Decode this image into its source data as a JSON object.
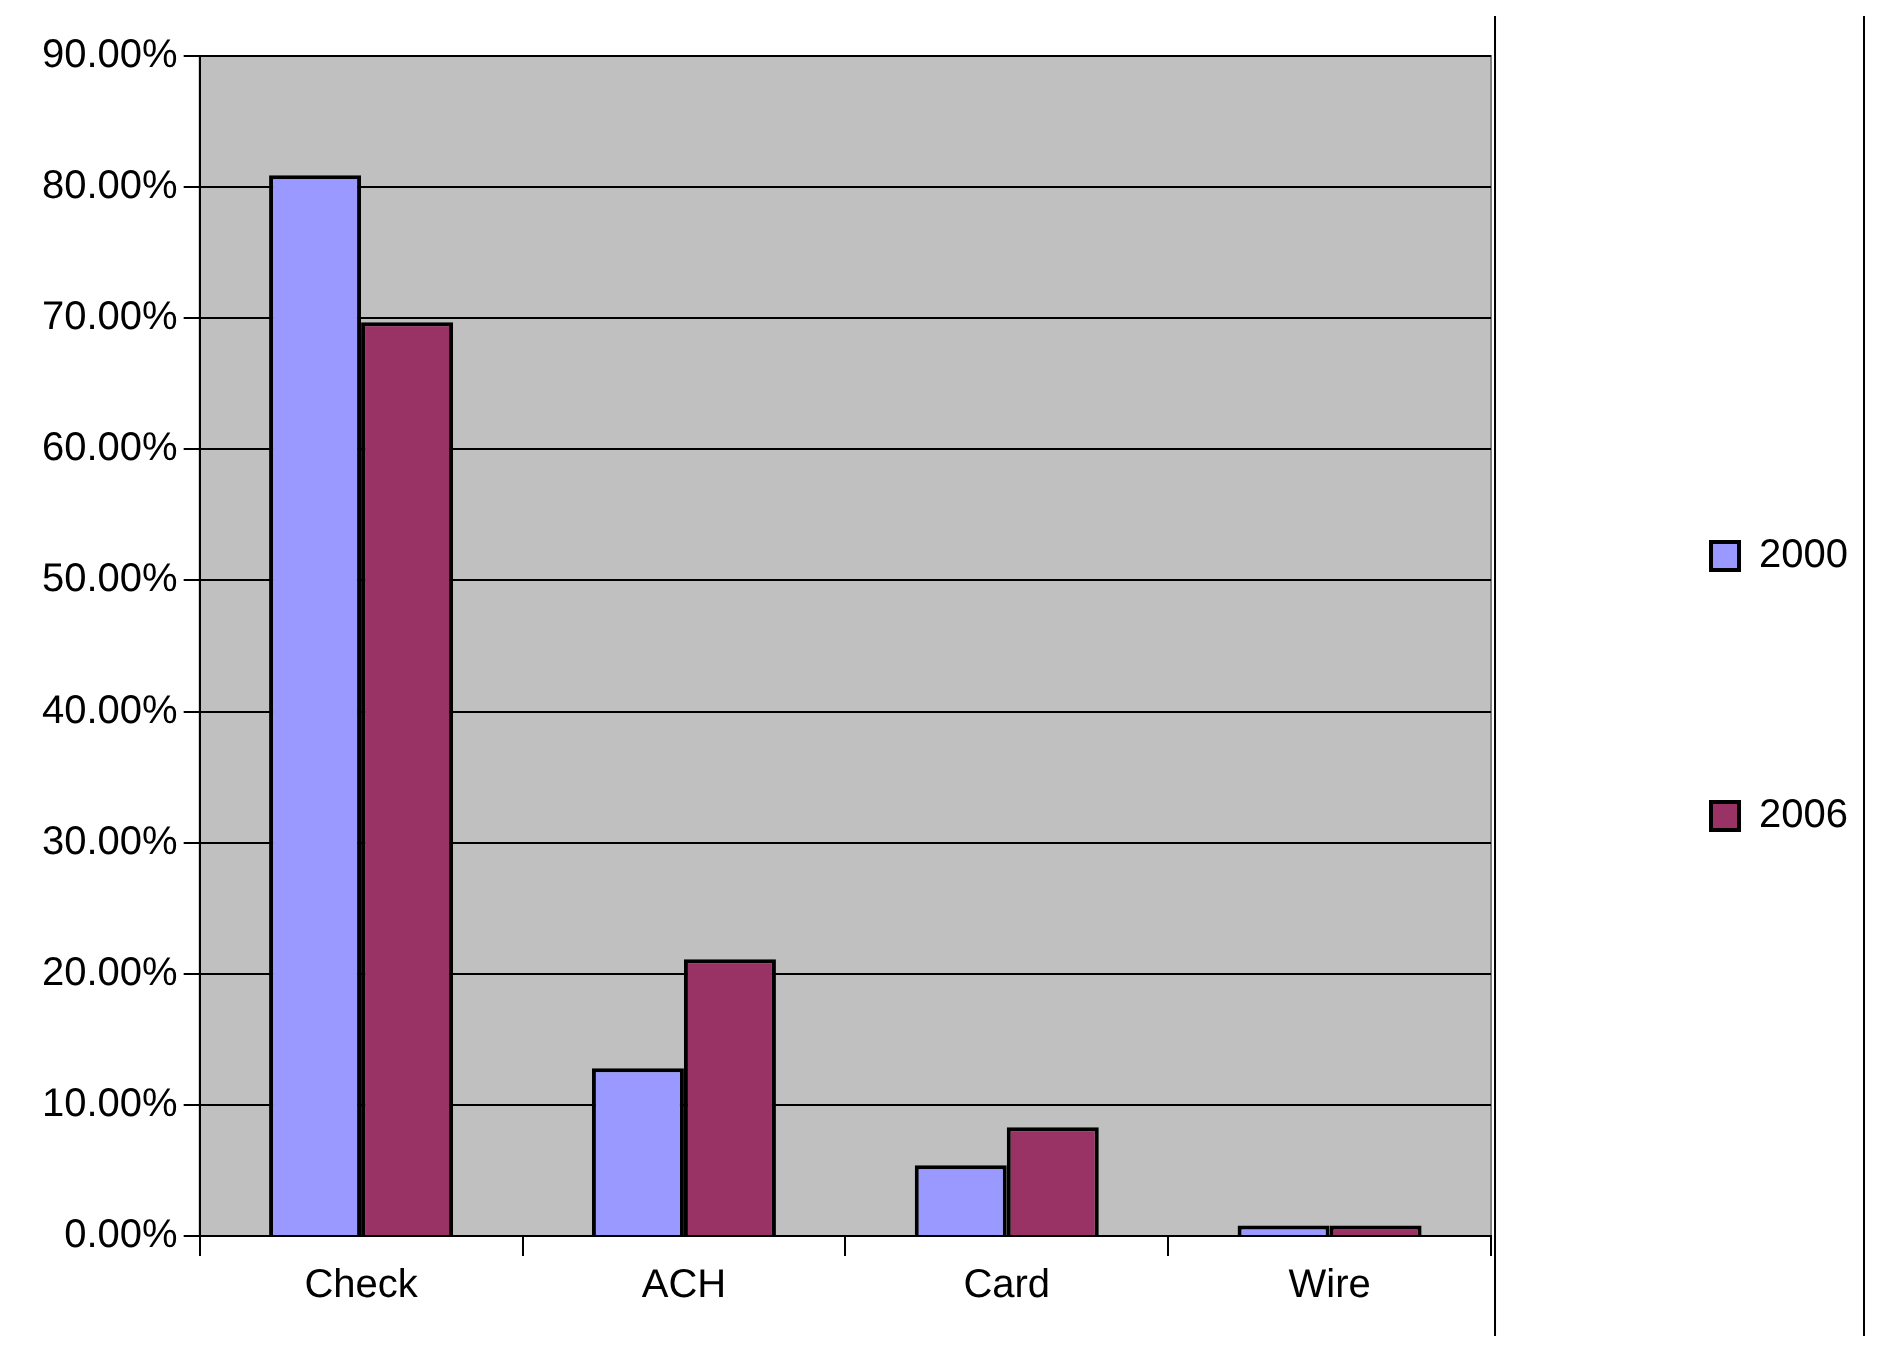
{
  "chart_data": {
    "type": "bar",
    "categories": [
      "Check",
      "ACH",
      "Card",
      "Wire"
    ],
    "series": [
      {
        "name": "2000",
        "color": "#9999ff",
        "values": [
          80.9,
          12.8,
          5.4,
          0.8
        ]
      },
      {
        "name": "2006",
        "color": "#993366",
        "values": [
          69.7,
          21.1,
          8.3,
          0.8
        ]
      }
    ],
    "ylim": [
      0,
      90
    ],
    "yticks": [
      {
        "value": 0,
        "label": "0.00%"
      },
      {
        "value": 10,
        "label": "10.00%"
      },
      {
        "value": 20,
        "label": "20.00%"
      },
      {
        "value": 30,
        "label": "30.00%"
      },
      {
        "value": 40,
        "label": "40.00%"
      },
      {
        "value": 50,
        "label": "50.00%"
      },
      {
        "value": 60,
        "label": "60.00%"
      },
      {
        "value": 70,
        "label": "70.00%"
      },
      {
        "value": 80,
        "label": "80.00%"
      },
      {
        "value": 90,
        "label": "90.00%"
      }
    ],
    "grid": "y",
    "legend": "right"
  }
}
